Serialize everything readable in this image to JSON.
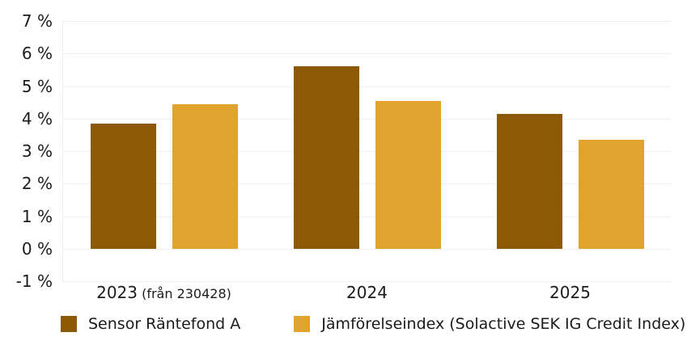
{
  "chart_data": {
    "type": "bar",
    "title": "",
    "xlabel": "",
    "ylabel": "",
    "categories": [
      {
        "label": "2023",
        "note": "(från 230428)"
      },
      {
        "label": "2024",
        "note": ""
      },
      {
        "label": "2025",
        "note": ""
      }
    ],
    "series": [
      {
        "name": "Sensor Räntefond A",
        "color": "#8D5907",
        "values": [
          3.85,
          5.6,
          4.15
        ]
      },
      {
        "name": "Jämförelseindex (Solactive SEK IG Credit Index)",
        "color": "#E0A42E",
        "values": [
          4.45,
          4.55,
          3.35
        ]
      }
    ],
    "ylim": [
      -1,
      7
    ],
    "ytick_step": 1,
    "ytick_suffix": " %",
    "grid": true,
    "legend_position": "bottom"
  },
  "colors": {
    "background": "#ffffff",
    "gridline": "#efefef",
    "axis_text": "#1b1b1b"
  }
}
